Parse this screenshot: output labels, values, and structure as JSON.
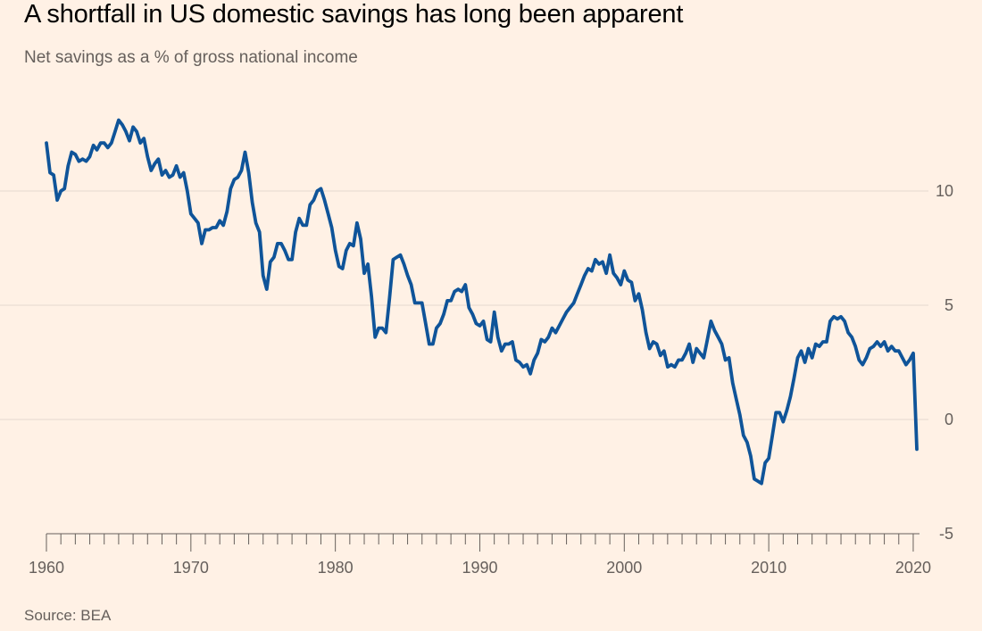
{
  "header": {
    "title": "A shortfall in US domestic savings has long been apparent",
    "subtitle": "Net savings as a % of gross national income"
  },
  "footer": {
    "source": "Source: BEA"
  },
  "colors": {
    "background": "#fff1e5",
    "line": "#0f5499",
    "grid": "#e6d9ce",
    "axis": "#66605c",
    "tick_label": "#66605c"
  },
  "chart_data": {
    "type": "line",
    "title": "A shortfall in US domestic savings has long been apparent",
    "subtitle": "Net savings as a % of gross national income",
    "xlabel": "",
    "ylabel": "",
    "xlim": [
      1960,
      2020.25
    ],
    "ylim": [
      -5,
      13.5
    ],
    "x_ticks": [
      1960,
      1970,
      1980,
      1990,
      2000,
      2010,
      2020
    ],
    "y_ticks": [
      -5,
      0,
      5,
      10
    ],
    "y_axis_side": "right",
    "grid": "horizontal",
    "legend": "none",
    "series": [
      {
        "x": [
          1960,
          1960.25,
          1960.5,
          1960.75,
          1961,
          1961.25,
          1961.5,
          1961.75,
          1962,
          1962.25,
          1962.5,
          1962.75,
          1963,
          1963.25,
          1963.5,
          1963.75,
          1964,
          1964.25,
          1964.5,
          1964.75,
          1965,
          1965.25,
          1965.5,
          1965.75,
          1966,
          1966.25,
          1966.5,
          1966.75,
          1967,
          1967.25,
          1967.5,
          1967.75,
          1968,
          1968.25,
          1968.5,
          1968.75,
          1969,
          1969.25,
          1969.5,
          1969.75,
          1970,
          1970.25,
          1970.5,
          1970.75,
          1971,
          1971.25,
          1971.5,
          1971.75,
          1972,
          1972.25,
          1972.5,
          1972.75,
          1973,
          1973.25,
          1973.5,
          1973.75,
          1974,
          1974.25,
          1974.5,
          1974.75,
          1975,
          1975.25,
          1975.5,
          1975.75,
          1976,
          1976.25,
          1976.5,
          1976.75,
          1977,
          1977.25,
          1977.5,
          1977.75,
          1978,
          1978.25,
          1978.5,
          1978.75,
          1979,
          1979.25,
          1979.5,
          1979.75,
          1980,
          1980.25,
          1980.5,
          1980.75,
          1981,
          1981.25,
          1981.5,
          1981.75,
          1982,
          1982.25,
          1982.5,
          1982.75,
          1983,
          1983.25,
          1983.5,
          1983.75,
          1984,
          1984.25,
          1984.5,
          1984.75,
          1985,
          1985.25,
          1985.5,
          1985.75,
          1986,
          1986.25,
          1986.5,
          1986.75,
          1987,
          1987.25,
          1987.5,
          1987.75,
          1988,
          1988.25,
          1988.5,
          1988.75,
          1989,
          1989.25,
          1989.5,
          1989.75,
          1990,
          1990.25,
          1990.5,
          1990.75,
          1991,
          1991.25,
          1991.5,
          1991.75,
          1992,
          1992.25,
          1992.5,
          1992.75,
          1993,
          1993.25,
          1993.5,
          1993.75,
          1994,
          1994.25,
          1994.5,
          1994.75,
          1995,
          1995.25,
          1995.5,
          1995.75,
          1996,
          1996.25,
          1996.5,
          1996.75,
          1997,
          1997.25,
          1997.5,
          1997.75,
          1998,
          1998.25,
          1998.5,
          1998.75,
          1999,
          1999.25,
          1999.5,
          1999.75,
          2000,
          2000.25,
          2000.5,
          2000.75,
          2001,
          2001.25,
          2001.5,
          2001.75,
          2002,
          2002.25,
          2002.5,
          2002.75,
          2003,
          2003.25,
          2003.5,
          2003.75,
          2004,
          2004.25,
          2004.5,
          2004.75,
          2005,
          2005.25,
          2005.5,
          2005.75,
          2006,
          2006.25,
          2006.5,
          2006.75,
          2007,
          2007.25,
          2007.5,
          2007.75,
          2008,
          2008.25,
          2008.5,
          2008.75,
          2009,
          2009.25,
          2009.5,
          2009.75,
          2010,
          2010.25,
          2010.5,
          2010.75,
          2011,
          2011.25,
          2011.5,
          2011.75,
          2012,
          2012.25,
          2012.5,
          2012.75,
          2013,
          2013.25,
          2013.5,
          2013.75,
          2014,
          2014.25,
          2014.5,
          2014.75,
          2015,
          2015.25,
          2015.5,
          2015.75,
          2016,
          2016.25,
          2016.5,
          2016.75,
          2017,
          2017.25,
          2017.5,
          2017.75,
          2018,
          2018.25,
          2018.5,
          2018.75,
          2019,
          2019.25,
          2019.5,
          2019.75,
          2020,
          2020.25
        ],
        "values": [
          12.1,
          10.8,
          10.7,
          9.6,
          10.0,
          10.1,
          11.1,
          11.7,
          11.6,
          11.3,
          11.4,
          11.3,
          11.5,
          12.0,
          11.8,
          12.1,
          12.1,
          11.9,
          12.1,
          12.6,
          13.1,
          12.9,
          12.6,
          12.2,
          12.8,
          12.6,
          12.1,
          12.3,
          11.5,
          10.9,
          11.2,
          11.4,
          10.7,
          10.9,
          10.6,
          10.7,
          11.1,
          10.6,
          10.8,
          10.0,
          9.0,
          8.8,
          8.6,
          7.7,
          8.3,
          8.3,
          8.4,
          8.4,
          8.7,
          8.5,
          9.1,
          10.1,
          10.5,
          10.6,
          10.9,
          11.7,
          10.8,
          9.5,
          8.6,
          8.2,
          6.3,
          5.7,
          6.9,
          7.1,
          7.7,
          7.7,
          7.4,
          7.0,
          7.0,
          8.2,
          8.8,
          8.5,
          8.5,
          9.4,
          9.6,
          10.0,
          10.1,
          9.6,
          9.0,
          8.4,
          7.4,
          6.7,
          6.6,
          7.4,
          7.7,
          7.6,
          8.6,
          7.9,
          6.4,
          6.8,
          5.4,
          3.6,
          4.0,
          4.0,
          3.8,
          5.3,
          7.0,
          7.1,
          7.2,
          6.8,
          6.3,
          5.9,
          5.1,
          5.1,
          5.1,
          4.2,
          3.3,
          3.3,
          4.0,
          4.2,
          4.6,
          5.2,
          5.2,
          5.6,
          5.7,
          5.6,
          5.9,
          4.9,
          4.6,
          4.2,
          4.1,
          4.3,
          3.5,
          3.4,
          4.7,
          3.6,
          3.0,
          3.3,
          3.3,
          3.4,
          2.6,
          2.5,
          2.3,
          2.4,
          2.0,
          2.6,
          2.9,
          3.5,
          3.4,
          3.6,
          4.0,
          3.8,
          4.1,
          4.4,
          4.7,
          4.9,
          5.1,
          5.5,
          5.9,
          6.3,
          6.6,
          6.5,
          7.0,
          6.8,
          6.9,
          6.4,
          7.2,
          6.4,
          6.2,
          5.9,
          6.5,
          6.1,
          6.0,
          5.2,
          5.5,
          4.8,
          3.8,
          3.1,
          3.4,
          3.3,
          2.8,
          3.0,
          2.3,
          2.4,
          2.3,
          2.6,
          2.6,
          2.9,
          3.3,
          2.5,
          3.1,
          2.9,
          2.7,
          3.5,
          4.3,
          3.9,
          3.6,
          3.3,
          2.6,
          2.7,
          1.6,
          0.9,
          0.2,
          -0.7,
          -1.0,
          -1.6,
          -2.6,
          -2.7,
          -2.8,
          -1.9,
          -1.7,
          -0.7,
          0.3,
          0.3,
          -0.1,
          0.4,
          1.0,
          1.8,
          2.7,
          3.0,
          2.5,
          3.1,
          2.7,
          3.3,
          3.2,
          3.4,
          3.4,
          4.3,
          4.5,
          4.4,
          4.5,
          4.3,
          3.8,
          3.6,
          3.2,
          2.6,
          2.4,
          2.7,
          3.1,
          3.2,
          3.4,
          3.2,
          3.4,
          3.0,
          3.2,
          3.0,
          3.0,
          2.7,
          2.4,
          2.6,
          2.9,
          -1.3
        ]
      }
    ]
  }
}
